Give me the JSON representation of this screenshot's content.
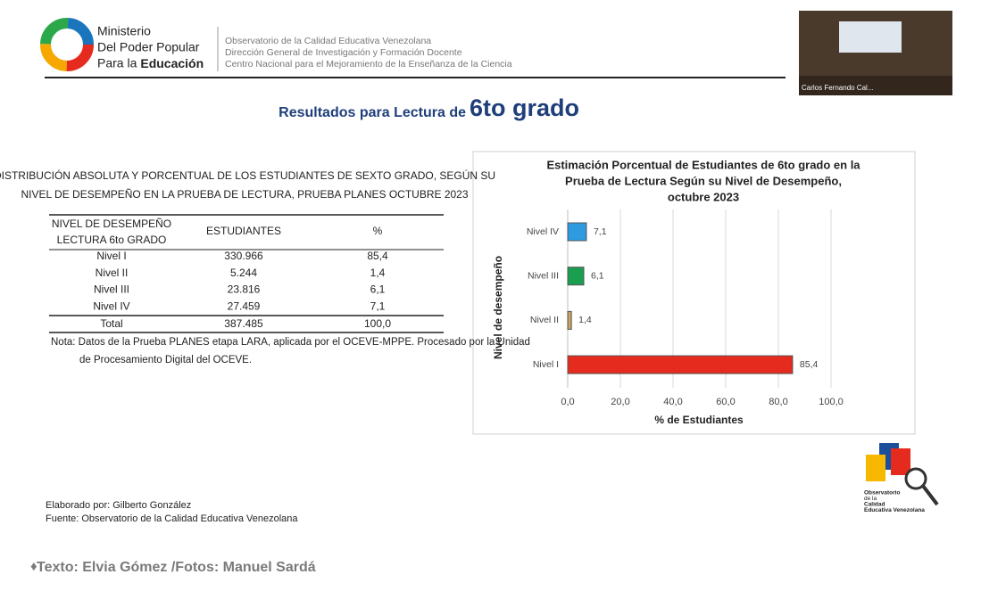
{
  "header": {
    "ministry_lines": [
      "Ministerio",
      "Del Poder Popular"
    ],
    "ministry_prefix": "Para la",
    "ministry_emphasis": "Educación",
    "org_lines": [
      "Observatorio de la Calidad Educativa Venezolana",
      "Dirección General de Investigación y Formación Docente",
      "Centro Nacional para el Mejoramiento de la Enseñanza de la Ciencia"
    ],
    "video_caption": "Carlos Fernando Cal..."
  },
  "slide_title": {
    "text": "Resultados para Lectura de",
    "emphasis": "6to grado"
  },
  "table": {
    "title_lines": [
      "DISTRIBUCIÓN ABSOLUTA Y PORCENTUAL DE LOS ESTUDIANTES DE SEXTO GRADO, SEGÚN SU",
      "NIVEL DE DESEMPEÑO EN LA PRUEBA DE LECTURA, PRUEBA PLANES OCTUBRE 2023"
    ],
    "header_lines": [
      "NIVEL DE DESEMPEÑO",
      "LECTURA 6to GRADO"
    ],
    "columns": [
      "ESTUDIANTES",
      "%"
    ],
    "rows": [
      [
        "Nivel I",
        "330.966",
        "85,4"
      ],
      [
        "Nivel II",
        "5.244",
        "1,4"
      ],
      [
        "Nivel III",
        "23.816",
        "6,1"
      ],
      [
        "Nivel IV",
        "27.459",
        "7,1"
      ]
    ],
    "total": [
      "Total",
      "387.485",
      "100,0"
    ],
    "note_lines": [
      "Nota: Datos de la Prueba PLANES etapa LARA, aplicada por el OCEVE-MPPE. Procesado por la Unidad",
      "de Procesamiento Digital del OCEVE."
    ]
  },
  "chart_data": {
    "type": "bar",
    "orientation": "horizontal",
    "title": [
      "Estimación Porcentual de Estudiantes de 6to grado en la",
      "Prueba de Lectura Según su Nivel de Desempeño,",
      "octubre 2023"
    ],
    "categories": [
      "Nivel IV",
      "Nivel III",
      "Nivel II",
      "Nivel I"
    ],
    "values": [
      7.1,
      6.1,
      1.4,
      85.4
    ],
    "value_labels": [
      "7,1",
      "6,1",
      "1,4",
      "85,4"
    ],
    "colors": [
      "#2e9be0",
      "#1a9e4f",
      "#c9a35a",
      "#e52a1e"
    ],
    "xlabel": "% de Estudiantes",
    "ylabel": "Nivel de desempeño",
    "xlim": [
      0,
      100
    ],
    "xticks": [
      {
        "value": 0,
        "label": "0,0"
      },
      {
        "value": 20,
        "label": "20,0"
      },
      {
        "value": 40,
        "label": "40,0"
      },
      {
        "value": 60,
        "label": "60,0"
      },
      {
        "value": 80,
        "label": "80,0"
      },
      {
        "value": 100,
        "label": "100,0"
      }
    ],
    "grid": true
  },
  "footer": {
    "credits": [
      "Elaborado por: Gilberto González",
      "Fuente: Observatorio de la Calidad Educativa Venezolana"
    ],
    "logo_lines": [
      "Observatorio",
      "de la",
      "Calidad",
      "Educativa Venezolana"
    ],
    "byline": "Texto: Elvia Gómez /Fotos: Manuel Sardá"
  }
}
